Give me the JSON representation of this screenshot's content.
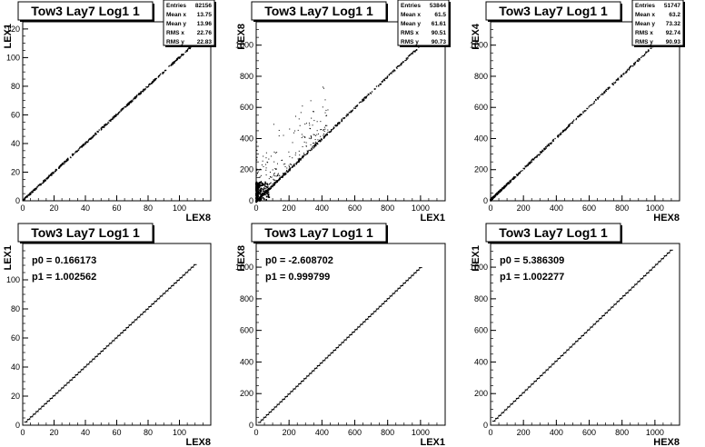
{
  "chart_data": [
    {
      "type": "scatter",
      "title": "Tow3 Lay7 Log1 1",
      "xlabel": "LEX8",
      "ylabel": "LEX1",
      "xlim": [
        0,
        120
      ],
      "ylim": [
        0,
        125
      ],
      "xticks": [
        0,
        20,
        40,
        60,
        80,
        100
      ],
      "yticks": [
        0,
        20,
        40,
        60,
        80,
        100,
        120
      ],
      "stats": [
        {
          "label": "Entries",
          "value": "82156"
        },
        {
          "label": "Mean x",
          "value": "13.75"
        },
        {
          "label": "Mean y",
          "value": "13.96"
        },
        {
          "label": "RMS x",
          "value": "22.76"
        },
        {
          "label": "RMS y",
          "value": "22.83"
        }
      ],
      "trend": {
        "slope": 1.0,
        "intercept": 0.2,
        "x_range": [
          0,
          110
        ]
      }
    },
    {
      "type": "scatter",
      "title": "Tow3 Lay7 Log1 1",
      "xlabel": "LEX1",
      "ylabel": "HEX8",
      "xlim": [
        0,
        1150
      ],
      "ylim": [
        0,
        1150
      ],
      "xticks": [
        0,
        200,
        400,
        600,
        800,
        1000
      ],
      "yticks": [
        0,
        200,
        400,
        600,
        800,
        1000
      ],
      "stats": [
        {
          "label": "Entries",
          "value": "53844"
        },
        {
          "label": "Mean x",
          "value": "61.5"
        },
        {
          "label": "Mean y",
          "value": "61.61"
        },
        {
          "label": "RMS x",
          "value": "90.51"
        },
        {
          "label": "RMS y",
          "value": "90.73"
        }
      ],
      "trend": {
        "slope": 1.0,
        "intercept": -2.6,
        "x_range": [
          0,
          1000
        ]
      }
    },
    {
      "type": "scatter",
      "title": "Tow3 Lay7 Log1 1",
      "xlabel": "HEX8",
      "ylabel": "HEX4",
      "xlim": [
        0,
        1150
      ],
      "ylim": [
        0,
        1150
      ],
      "xticks": [
        0,
        200,
        400,
        600,
        800,
        1000
      ],
      "yticks": [
        0,
        200,
        400,
        600,
        800,
        1000
      ],
      "stats": [
        {
          "label": "Entries",
          "value": "51747"
        },
        {
          "label": "Mean x",
          "value": "63.2"
        },
        {
          "label": "Mean y",
          "value": "73.32"
        },
        {
          "label": "RMS x",
          "value": "92.74"
        },
        {
          "label": "RMS y",
          "value": "90.93"
        }
      ],
      "trend": {
        "slope": 1.0,
        "intercept": 5.4,
        "x_range": [
          0,
          1050
        ]
      }
    },
    {
      "type": "line",
      "title": "Tow3 Lay7 Log1 1",
      "xlabel": "LEX8",
      "ylabel": "LEX1",
      "xlim": [
        0,
        120
      ],
      "ylim": [
        0,
        125
      ],
      "xticks": [
        0,
        20,
        40,
        60,
        80,
        100
      ],
      "yticks": [
        0,
        20,
        40,
        60,
        80,
        100
      ],
      "fit": [
        {
          "label": "p0",
          "value": "0.166173"
        },
        {
          "label": "p1",
          "value": "1.002562"
        }
      ],
      "trend": {
        "slope": 1.002562,
        "intercept": 0.166173,
        "x_range": [
          2,
          110
        ]
      }
    },
    {
      "type": "line",
      "title": "Tow3 Lay7 Log1 1",
      "xlabel": "LEX1",
      "ylabel": "HEX8",
      "xlim": [
        0,
        1150
      ],
      "ylim": [
        0,
        1150
      ],
      "xticks": [
        0,
        200,
        400,
        600,
        800,
        1000
      ],
      "yticks": [
        0,
        200,
        400,
        600,
        800,
        1000
      ],
      "fit": [
        {
          "label": "p0",
          "value": "-2.608702"
        },
        {
          "label": "p1",
          "value": "0.999799"
        }
      ],
      "trend": {
        "slope": 0.999799,
        "intercept": -2.608702,
        "x_range": [
          20,
          1000
        ]
      }
    },
    {
      "type": "line",
      "title": "Tow3 Lay7 Log1 1",
      "xlabel": "HEX8",
      "ylabel": "HEX1",
      "xlim": [
        0,
        1150
      ],
      "ylim": [
        0,
        1150
      ],
      "xticks": [
        0,
        200,
        400,
        600,
        800,
        1000
      ],
      "yticks": [
        0,
        200,
        400,
        600,
        800,
        1000
      ],
      "fit": [
        {
          "label": "p0",
          "value": "5.386309"
        },
        {
          "label": "p1",
          "value": "1.002277"
        }
      ],
      "trend": {
        "slope": 1.002277,
        "intercept": 5.386309,
        "x_range": [
          20,
          1100
        ]
      }
    }
  ]
}
